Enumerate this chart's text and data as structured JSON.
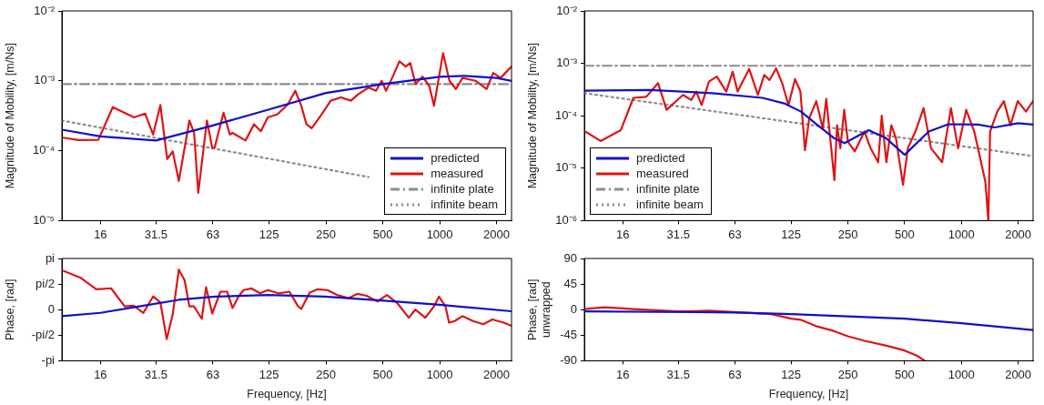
{
  "chart_data": [
    {
      "type": "line",
      "ylabel": "Magnitude of Mobility, [m/Ns]",
      "xlim": [
        10,
        2400
      ],
      "xticks": [
        16,
        31.5,
        63,
        125,
        250,
        500,
        1000,
        2000
      ],
      "ylim": [
        1e-05,
        0.01
      ],
      "yticks": [
        {
          "value": 1e-05,
          "label": "10⁻⁵"
        },
        {
          "value": 0.0001,
          "label": "10⁻⁴"
        },
        {
          "value": 0.001,
          "label": "10⁻³"
        },
        {
          "value": 0.01,
          "label": "10⁻²"
        }
      ],
      "log": "xy",
      "grid": false,
      "legend": "bottom right",
      "series": [
        {
          "name": "predicted",
          "color": "#1010c8",
          "line_style": "solid",
          "x": [
            10,
            16,
            31.5,
            63,
            125,
            250,
            500,
            1000,
            1350,
            2000,
            2400
          ],
          "values": [
            0.0002,
            0.00016,
            0.00014,
            0.00023,
            0.00039,
            0.00067,
            0.0009,
            0.00114,
            0.00118,
            0.0011,
            0.001
          ]
        },
        {
          "name": "measured",
          "color": "#dd1515",
          "line_style": "solid",
          "x": [
            10,
            12.2,
            15.6,
            18.6,
            24.1,
            27.6,
            30.4,
            33.2,
            36.1,
            38.6,
            41.6,
            47.3,
            50.1,
            52.7,
            58.6,
            62.5,
            64.3,
            71.7,
            77.5,
            80,
            93.8,
            104,
            113,
            123,
            138,
            157,
            172,
            185,
            197,
            210,
            235,
            265,
            300,
            339,
            370,
            420,
            460,
            493,
            520,
            560,
            612,
            661,
            698,
            745,
            810,
            880,
            933,
            1042,
            1125,
            1218,
            1320,
            1550,
            1772,
            1920,
            2100,
            2400
          ],
          "values": [
            0.000155,
            0.000142,
            0.000143,
            0.00042,
            0.0003,
            0.00034,
            0.00017,
            0.00045,
            7.6e-05,
            9.8e-05,
            3.7e-05,
            0.00027,
            0.00018,
            2.5e-05,
            0.00027,
            0.00011,
            0.00011,
            0.00035,
            0.00017,
            0.00018,
            0.00014,
            0.00024,
            0.00019,
            0.0003,
            0.00033,
            0.00046,
            0.00072,
            0.00044,
            0.00024,
            0.00021,
            0.00032,
            0.00052,
            0.00058,
            0.00052,
            0.00064,
            0.0008,
            0.00072,
            0.001,
            0.00072,
            0.0011,
            0.0019,
            0.0016,
            0.0018,
            0.0009,
            0.00115,
            0.00085,
            0.00044,
            0.0025,
            0.001,
            0.00076,
            0.0011,
            0.001,
            0.00076,
            0.0013,
            0.0011,
            0.0016
          ]
        },
        {
          "name": "infinite plate",
          "color": "#8c8c8c",
          "line_style": "dashdot",
          "x": [
            10,
            2400
          ],
          "values": [
            0.0009,
            0.0009
          ]
        },
        {
          "name": "infinite beam",
          "color": "#8c8c8c",
          "line_style": "dotted",
          "x": [
            10,
            420
          ],
          "values": [
            0.00027,
            4.2e-05
          ]
        }
      ]
    },
    {
      "type": "line",
      "ylabel": "Magnitude of Mobility, [m/Ns]",
      "xlim": [
        10,
        2400
      ],
      "xticks": [
        16,
        31.5,
        63,
        125,
        250,
        500,
        1000,
        2000
      ],
      "ylim": [
        1e-06,
        0.01
      ],
      "yticks": [
        {
          "value": 1e-06,
          "label": "10⁻⁶"
        },
        {
          "value": 1e-05,
          "label": "10⁻⁵"
        },
        {
          "value": 0.0001,
          "label": "10⁻⁴"
        },
        {
          "value": 0.001,
          "label": "10⁻³"
        },
        {
          "value": 0.01,
          "label": "10⁻²"
        }
      ],
      "log": "xy",
      "grid": false,
      "legend": "bottom left",
      "series": [
        {
          "name": "predicted",
          "color": "#1010c8",
          "line_style": "solid",
          "x": [
            10,
            22.4,
            47.6,
            88,
            116,
            141,
            173,
            210,
            240,
            322,
            400,
            500,
            671,
            853,
            1225,
            1500,
            2000,
            2400
          ],
          "values": [
            0.0003,
            0.00031,
            0.00027,
            0.00022,
            0.00017,
            0.00012,
            6.6e-05,
            3.8e-05,
            3e-05,
            5.3e-05,
            3.7e-05,
            1.8e-05,
            5e-05,
            6.9e-05,
            6.8e-05,
            6e-05,
            7.2e-05,
            6.8e-05
          ]
        },
        {
          "name": "measured",
          "color": "#dd1515",
          "line_style": "solid",
          "x": [
            10,
            12.2,
            15.6,
            18.2,
            21.3,
            24.6,
            27.3,
            33.4,
            36.9,
            39.2,
            41.9,
            45.8,
            50.4,
            56.6,
            61.2,
            65,
            74.9,
            83.3,
            90,
            96,
            104,
            112,
            121,
            131,
            140,
            148,
            156,
            170,
            184,
            192,
            212,
            219,
            228,
            239,
            250,
            272,
            306,
            330,
            362,
            378,
            400,
            425,
            450,
            490,
            520,
            570,
            630,
            690,
            790,
            880,
            960,
            1060,
            1170,
            1340,
            1390,
            1420,
            1550,
            1680,
            1820,
            1990,
            2200,
            2400
          ],
          "values": [
            5.1e-05,
            3.3e-05,
            5.3e-05,
            0.00022,
            0.00023,
            0.00042,
            0.00013,
            0.00025,
            0.0002,
            0.00029,
            0.00016,
            0.00045,
            0.00056,
            0.00029,
            0.00069,
            0.00029,
            0.00078,
            0.00025,
            0.0006,
            0.00048,
            0.0008,
            0.00042,
            0.00016,
            0.0005,
            0.00029,
            2.2e-05,
            9e-05,
            0.00019,
            5.7e-05,
            0.00021,
            5.9e-06,
            6.6e-05,
            2.4e-05,
            0.00013,
            3.2e-05,
            2.1e-05,
            5e-05,
            2.4e-05,
            1.3e-05,
            0.0001,
            1.3e-05,
            6.6e-05,
            3.7e-05,
            4.8e-06,
            2.4e-05,
            5e-05,
            0.00014,
            2.4e-05,
            1.3e-05,
            0.00014,
            2.4e-05,
            0.00013,
            5e-05,
            5.5e-06,
            1e-06,
            5e-05,
            0.00012,
            0.00019,
            6.6e-05,
            0.00019,
            0.00012,
            0.00019
          ]
        },
        {
          "name": "infinite plate",
          "color": "#8c8c8c",
          "line_style": "dashdot",
          "x": [
            10,
            2400
          ],
          "values": [
            0.0009,
            0.0009
          ]
        },
        {
          "name": "infinite beam",
          "color": "#8c8c8c",
          "line_style": "dotted",
          "x": [
            10,
            2400
          ],
          "values": [
            0.00027,
            1.7e-05
          ]
        }
      ]
    },
    {
      "type": "line",
      "xlabel": "Frequency, [Hz]",
      "ylabel": "Phase, [rad]",
      "xlim": [
        10,
        2400
      ],
      "xticks": [
        16,
        31.5,
        63,
        125,
        250,
        500,
        1000,
        2000
      ],
      "ylim": [
        -3.1416,
        3.1416
      ],
      "yticks": [
        {
          "value": -3.1416,
          "label": "-pi"
        },
        {
          "value": -1.5708,
          "label": "-pi/2"
        },
        0,
        {
          "value": 1.5708,
          "label": "pi/2"
        },
        {
          "value": 3.1416,
          "label": "pi"
        }
      ],
      "log": "x",
      "grid": false,
      "series": [
        {
          "color": "#1010c8",
          "line_style": "solid",
          "x": [
            10,
            16,
            25.7,
            41.5,
            65,
            123,
            246,
            489,
            1000,
            2400
          ],
          "values": [
            -0.4,
            -0.2,
            0.2,
            0.6,
            0.8,
            0.9,
            0.8,
            0.56,
            0.3,
            -0.1
          ]
        },
        {
          "color": "#dd1515",
          "line_style": "solid",
          "x": [
            10,
            12.5,
            15.2,
            18.2,
            21.5,
            24,
            27,
            30.4,
            33.2,
            35.9,
            38.6,
            41.6,
            44.6,
            47.3,
            50,
            55,
            58,
            62.5,
            69,
            75,
            80,
            86,
            91.5,
            101,
            112,
            123,
            140,
            160,
            178,
            185,
            205,
            226,
            254,
            286,
            328,
            368,
            410,
            468,
            526,
            596,
            686,
            743,
            839,
            933,
            990,
            1073,
            1121,
            1200,
            1319,
            1500,
            1703,
            1900,
            2182,
            2400
          ],
          "values": [
            2.42,
            1.97,
            1.25,
            1.31,
            0.2,
            0.24,
            -0.2,
            0.81,
            0.44,
            -1.81,
            -0.3,
            2.46,
            1.81,
            0.2,
            0.2,
            -0.56,
            1.37,
            -0.24,
            1.1,
            1.1,
            0.1,
            0.8,
            1.2,
            1.3,
            1.0,
            1.2,
            1.0,
            1.1,
            0.2,
            0.04,
            1.05,
            1.25,
            1.2,
            0.9,
            0.7,
            0.97,
            0.85,
            0.5,
            0.9,
            0.4,
            -0.5,
            0,
            -0.5,
            0.2,
            0.8,
            0.2,
            -0.8,
            -0.7,
            -0.4,
            -0.7,
            -0.9,
            -0.6,
            -0.8,
            -1.0
          ]
        }
      ]
    },
    {
      "type": "line",
      "xlabel": "Frequency, [Hz]",
      "ylabel": [
        "Phase, [rad]",
        "unwrapped"
      ],
      "xlim": [
        10,
        2400
      ],
      "xticks": [
        16,
        31.5,
        63,
        125,
        250,
        500,
        1000,
        2000
      ],
      "ylim": [
        -90,
        90
      ],
      "yticks": [
        -90,
        -45,
        0,
        45,
        90
      ],
      "log": "x",
      "grid": false,
      "series": [
        {
          "color": "#1010c8",
          "line_style": "solid",
          "x": [
            10,
            63,
            125,
            250,
            500,
            1000,
            2400
          ],
          "values": [
            -3,
            -5,
            -8,
            -12,
            -16,
            -24,
            -36
          ]
        },
        {
          "color": "#dd1515",
          "line_style": "solid",
          "x": [
            10,
            12.8,
            18.2,
            31.5,
            46,
            98,
            125,
            141,
            173,
            212,
            250,
            307,
            406,
            500,
            580,
            640
          ],
          "values": [
            1,
            4,
            1,
            -3,
            -2,
            -8,
            -16,
            -18,
            -30,
            -38,
            -47,
            -55,
            -64,
            -72,
            -81,
            -90
          ]
        }
      ]
    }
  ]
}
